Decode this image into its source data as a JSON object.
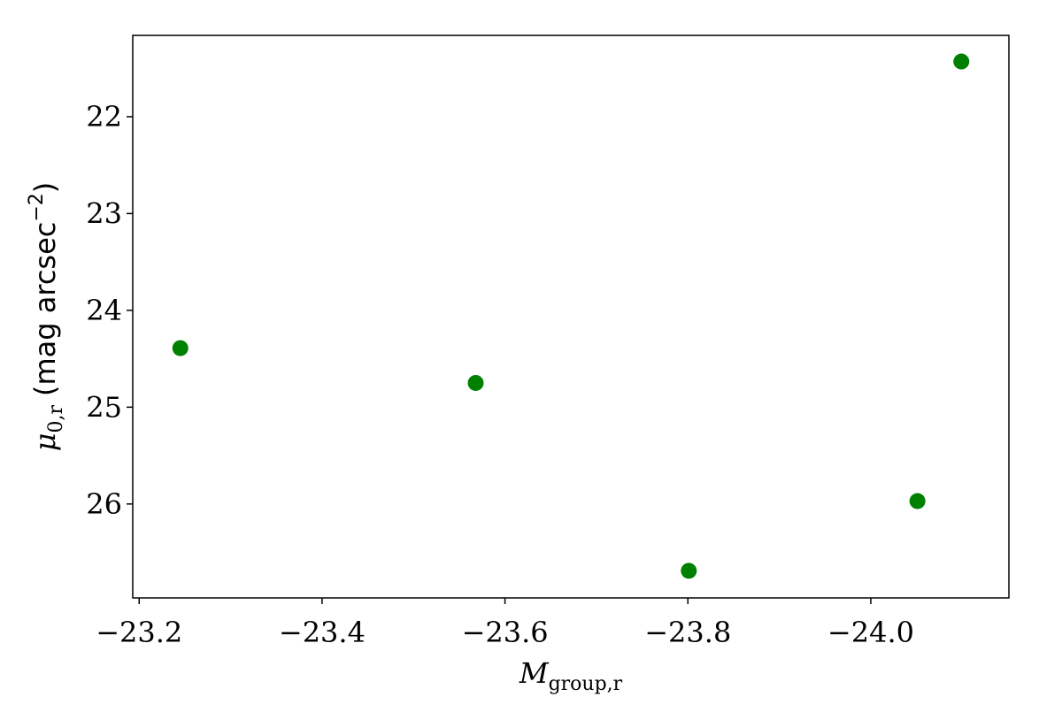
{
  "chart_data": {
    "type": "scatter",
    "xlabel": {
      "symbol": "M",
      "sub": "group,r"
    },
    "ylabel": {
      "symbol": "μ",
      "sub": "0,r",
      "unit": "(mag arcsec",
      "sup": "−2",
      "close": ")"
    },
    "series": [
      {
        "color": "#008000",
        "x": [
          -23.245,
          -23.568,
          -23.801,
          -24.051,
          -24.099
        ],
        "values": [
          24.39,
          24.75,
          26.69,
          25.97,
          21.43
        ]
      }
    ],
    "xlim": [
      -23.193,
      -24.151
    ],
    "xticks": [
      {
        "value": -23.2,
        "label": "−23.2"
      },
      {
        "value": -23.4,
        "label": "−23.4"
      },
      {
        "value": -23.6,
        "label": "−23.6"
      },
      {
        "value": -23.8,
        "label": "−23.8"
      },
      {
        "value": -24.0,
        "label": "−24.0"
      }
    ],
    "ylim": [
      26.97,
      21.16
    ],
    "yticks": [
      22,
      23,
      24,
      25,
      26
    ]
  }
}
